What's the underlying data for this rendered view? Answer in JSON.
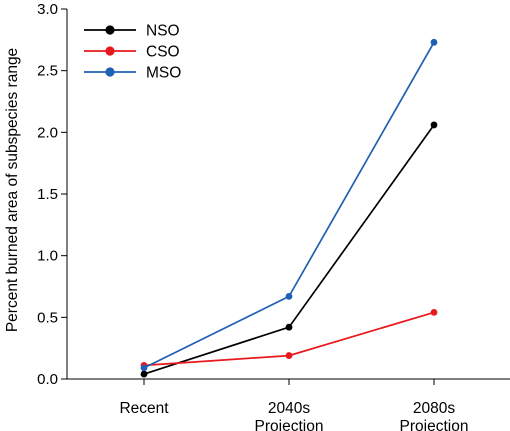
{
  "chart_data": {
    "type": "line",
    "title": "",
    "xlabel": "",
    "ylabel": "Percent burned area of subspecies range",
    "categories": [
      [
        "Recent"
      ],
      [
        "2040s",
        "Projection"
      ],
      [
        "2080s",
        "Projection"
      ]
    ],
    "ylim": [
      0,
      3.0
    ],
    "yticks": [
      "0.0",
      "0.5",
      "1.0",
      "1.5",
      "2.0",
      "2.5",
      "3.0"
    ],
    "grid": false,
    "legend_position": "top-left",
    "series": [
      {
        "name": "NSO",
        "color": "#000000",
        "values": [
          0.04,
          0.42,
          2.06
        ]
      },
      {
        "name": "CSO",
        "color": "#e8191d",
        "values": [
          0.11,
          0.19,
          0.54
        ]
      },
      {
        "name": "MSO",
        "color": "#1f5fb4",
        "values": [
          0.09,
          0.67,
          2.73
        ]
      }
    ]
  }
}
